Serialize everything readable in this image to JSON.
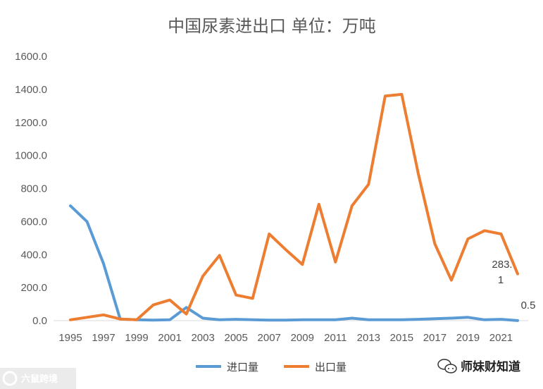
{
  "chart_data": {
    "type": "line",
    "title": "中国尿素进出口 单位：万吨",
    "xlabel": "",
    "ylabel": "",
    "ylim": [
      0,
      1600
    ],
    "y_ticks": [
      "0.0",
      "200.0",
      "400.0",
      "600.0",
      "800.0",
      "1000.0",
      "1200.0",
      "1400.0",
      "1600.0"
    ],
    "x_tick_labels": [
      "1995",
      "1997",
      "1999",
      "2001",
      "2003",
      "2005",
      "2007",
      "2009",
      "2011",
      "2013",
      "2015",
      "2017",
      "2019",
      "2021"
    ],
    "categories": [
      1995,
      1996,
      1997,
      1998,
      1999,
      2000,
      2001,
      2002,
      2003,
      2004,
      2005,
      2006,
      2007,
      2008,
      2009,
      2010,
      2011,
      2012,
      2013,
      2014,
      2015,
      2016,
      2017,
      2018,
      2019,
      2020,
      2021,
      2022
    ],
    "series": [
      {
        "name": "进口量",
        "color": "#5B9BD5",
        "values": [
          695,
          600,
          345,
          10,
          5,
          3,
          5,
          80,
          15,
          5,
          8,
          5,
          3,
          3,
          5,
          5,
          5,
          15,
          5,
          5,
          5,
          8,
          12,
          15,
          20,
          5,
          8,
          0.5
        ]
      },
      {
        "name": "出口量",
        "color": "#ED7D31",
        "values": [
          5,
          20,
          35,
          10,
          5,
          95,
          125,
          40,
          270,
          395,
          155,
          135,
          525,
          430,
          340,
          705,
          355,
          695,
          825,
          1360,
          1370,
          890,
          465,
          245,
          495,
          545,
          525,
          283.1
        ]
      }
    ],
    "data_labels": {
      "export_last_line1": "283.",
      "export_last_line2": "1",
      "import_last": "0.5"
    },
    "grid": false,
    "legend": "bottom"
  },
  "watermarks": {
    "left": "六鼠跨境",
    "right": "师妹财知道"
  }
}
